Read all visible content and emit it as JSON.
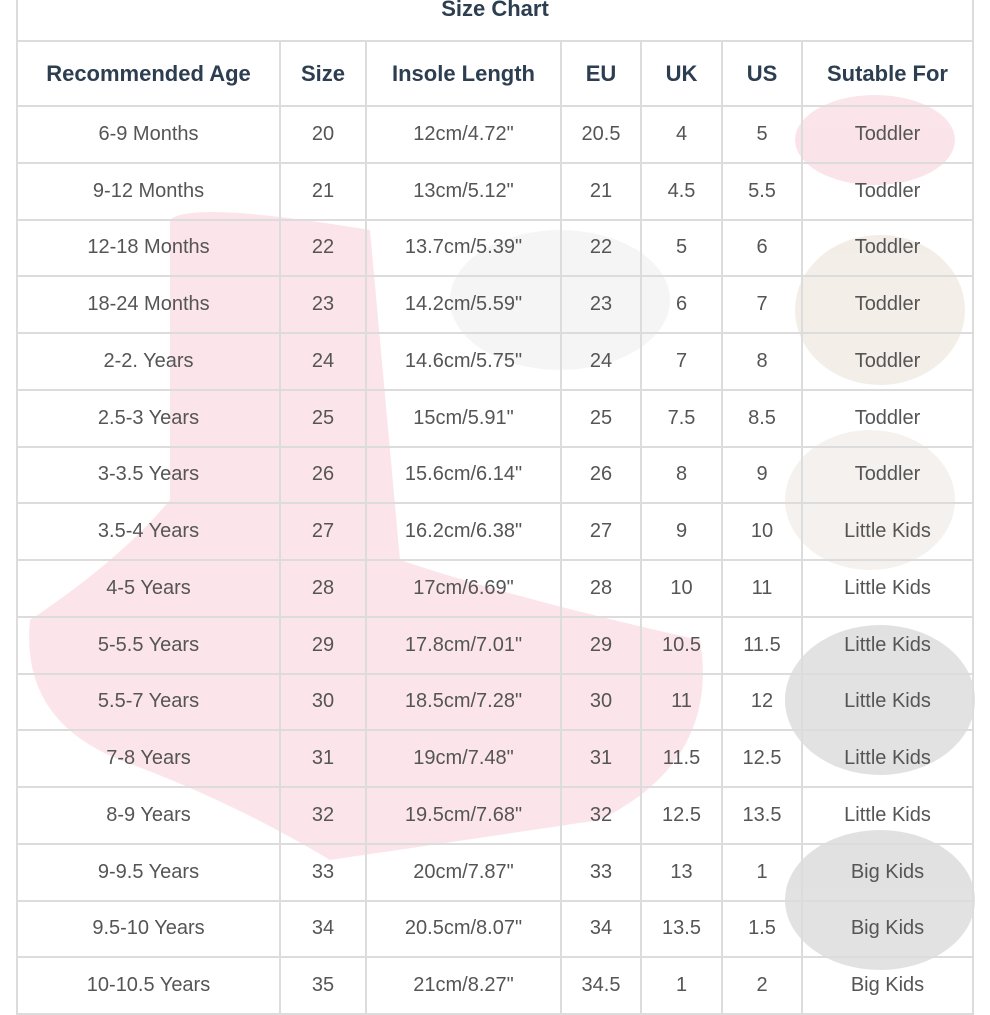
{
  "table": {
    "title": "Size Chart",
    "header": [
      "Recommended Age",
      "Size",
      "Insole Length",
      "EU",
      "UK",
      "US",
      "Sutable For"
    ],
    "rows": [
      [
        "6-9 Months",
        "20",
        "12cm/4.72\"",
        "20.5",
        "4",
        "5",
        "Toddler"
      ],
      [
        "9-12 Months",
        "21",
        "13cm/5.12\"",
        "21",
        "4.5",
        "5.5",
        "Toddler"
      ],
      [
        "12-18 Months",
        "22",
        "13.7cm/5.39\"",
        "22",
        "5",
        "6",
        "Toddler"
      ],
      [
        "18-24 Months",
        "23",
        "14.2cm/5.59\"",
        "23",
        "6",
        "7",
        "Toddler"
      ],
      [
        "2-2. Years",
        "24",
        "14.6cm/5.75\"",
        "24",
        "7",
        "8",
        "Toddler"
      ],
      [
        "2.5-3 Years",
        "25",
        "15cm/5.91\"",
        "25",
        "7.5",
        "8.5",
        "Toddler"
      ],
      [
        "3-3.5 Years",
        "26",
        "15.6cm/6.14\"",
        "26",
        "8",
        "9",
        "Toddler"
      ],
      [
        "3.5-4 Years",
        "27",
        "16.2cm/6.38\"",
        "27",
        "9",
        "10",
        "Little Kids"
      ],
      [
        "4-5 Years",
        "28",
        "17cm/6.69\"",
        "28",
        "10",
        "11",
        "Little Kids"
      ],
      [
        "5-5.5 Years",
        "29",
        "17.8cm/7.01\"",
        "29",
        "10.5",
        "11.5",
        "Little Kids"
      ],
      [
        "5.5-7 Years",
        "30",
        "18.5cm/7.28\"",
        "30",
        "11",
        "12",
        "Little Kids"
      ],
      [
        "7-8 Years",
        "31",
        "19cm/7.48\"",
        "31",
        "11.5",
        "12.5",
        "Little Kids"
      ],
      [
        "8-9 Years",
        "32",
        "19.5cm/7.68\"",
        "32",
        "12.5",
        "13.5",
        "Little Kids"
      ],
      [
        "9-9.5 Years",
        "33",
        "20cm/7.87\"",
        "33",
        "13",
        "1",
        "Big Kids"
      ],
      [
        "9.5-10 Years",
        "34",
        "20.5cm/8.07\"",
        "34",
        "13.5",
        "1.5",
        "Big Kids"
      ],
      [
        "10-10.5 Years",
        "35",
        "21cm/8.27\"",
        "34.5",
        "1",
        "2",
        "Big Kids"
      ]
    ]
  }
}
